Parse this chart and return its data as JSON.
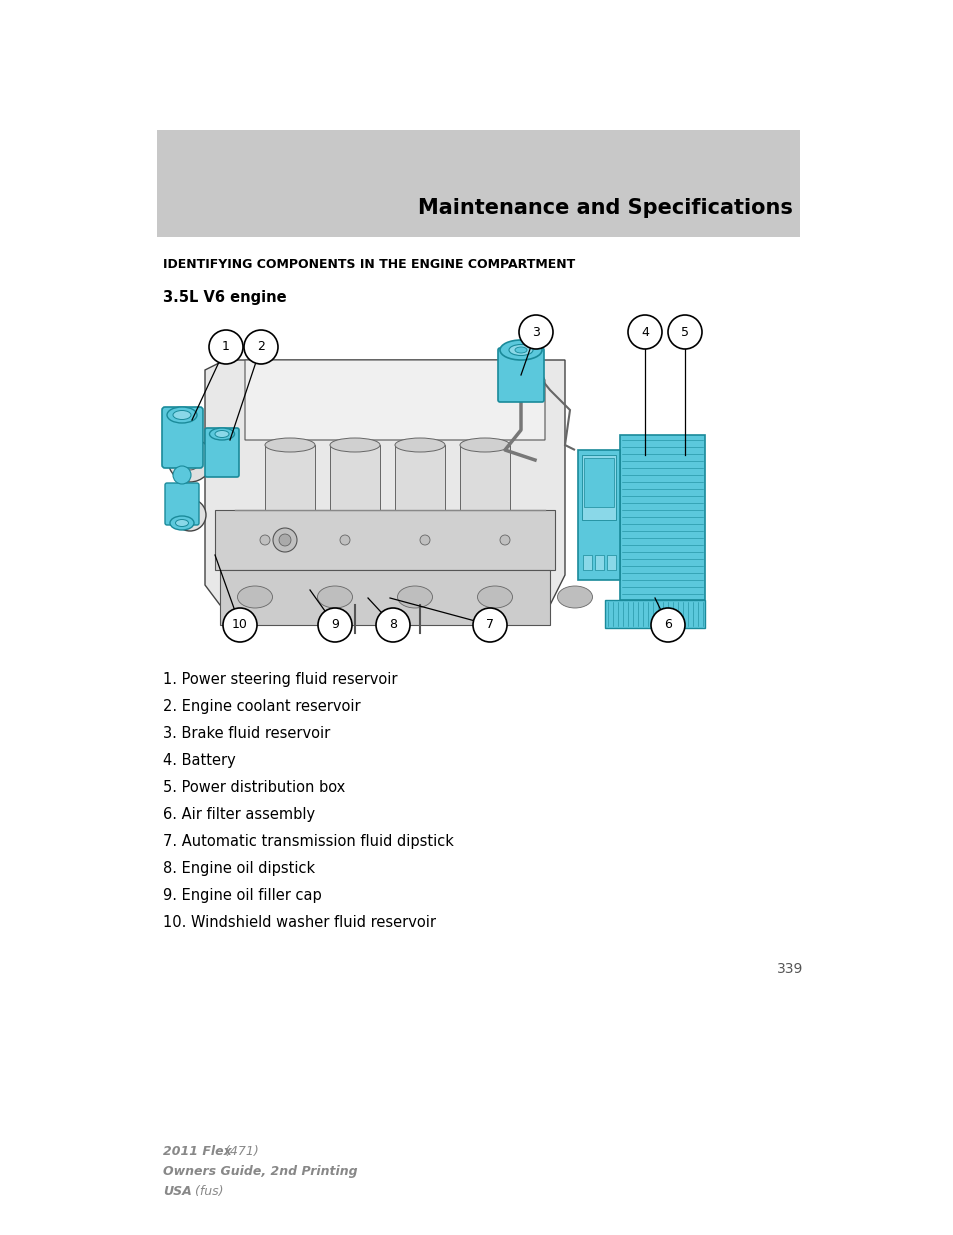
{
  "page_bg": "#ffffff",
  "header_bg": "#c8c8c8",
  "header_text": "Maintenance and Specifications",
  "header_text_color": "#000000",
  "section_title": "IDENTIFYING COMPONENTS IN THE ENGINE COMPARTMENT",
  "subsection_title": "3.5L V6 engine",
  "items": [
    "1. Power steering fluid reservoir",
    "2. Engine coolant reservoir",
    "3. Brake fluid reservoir",
    "4. Battery",
    "5. Power distribution box",
    "6. Air filter assembly",
    "7. Automatic transmission fluid dipstick",
    "8. Engine oil dipstick",
    "9. Engine oil filler cap",
    "10. Windshield washer fluid reservoir"
  ],
  "footer_line1_bold": "2011 Flex",
  "footer_line1_italic": " (471)",
  "footer_line2_bold": "Owners Guide, 2nd Printing",
  "footer_line3_bold": "USA",
  "footer_line3_italic": " (fus)",
  "page_number": "339",
  "blue_color": "#5bc8dc",
  "blue_dark": "#1a8a9a",
  "blue_light": "#8ad8e8",
  "engine_gray": "#d8d8d8",
  "engine_outline": "#555555"
}
